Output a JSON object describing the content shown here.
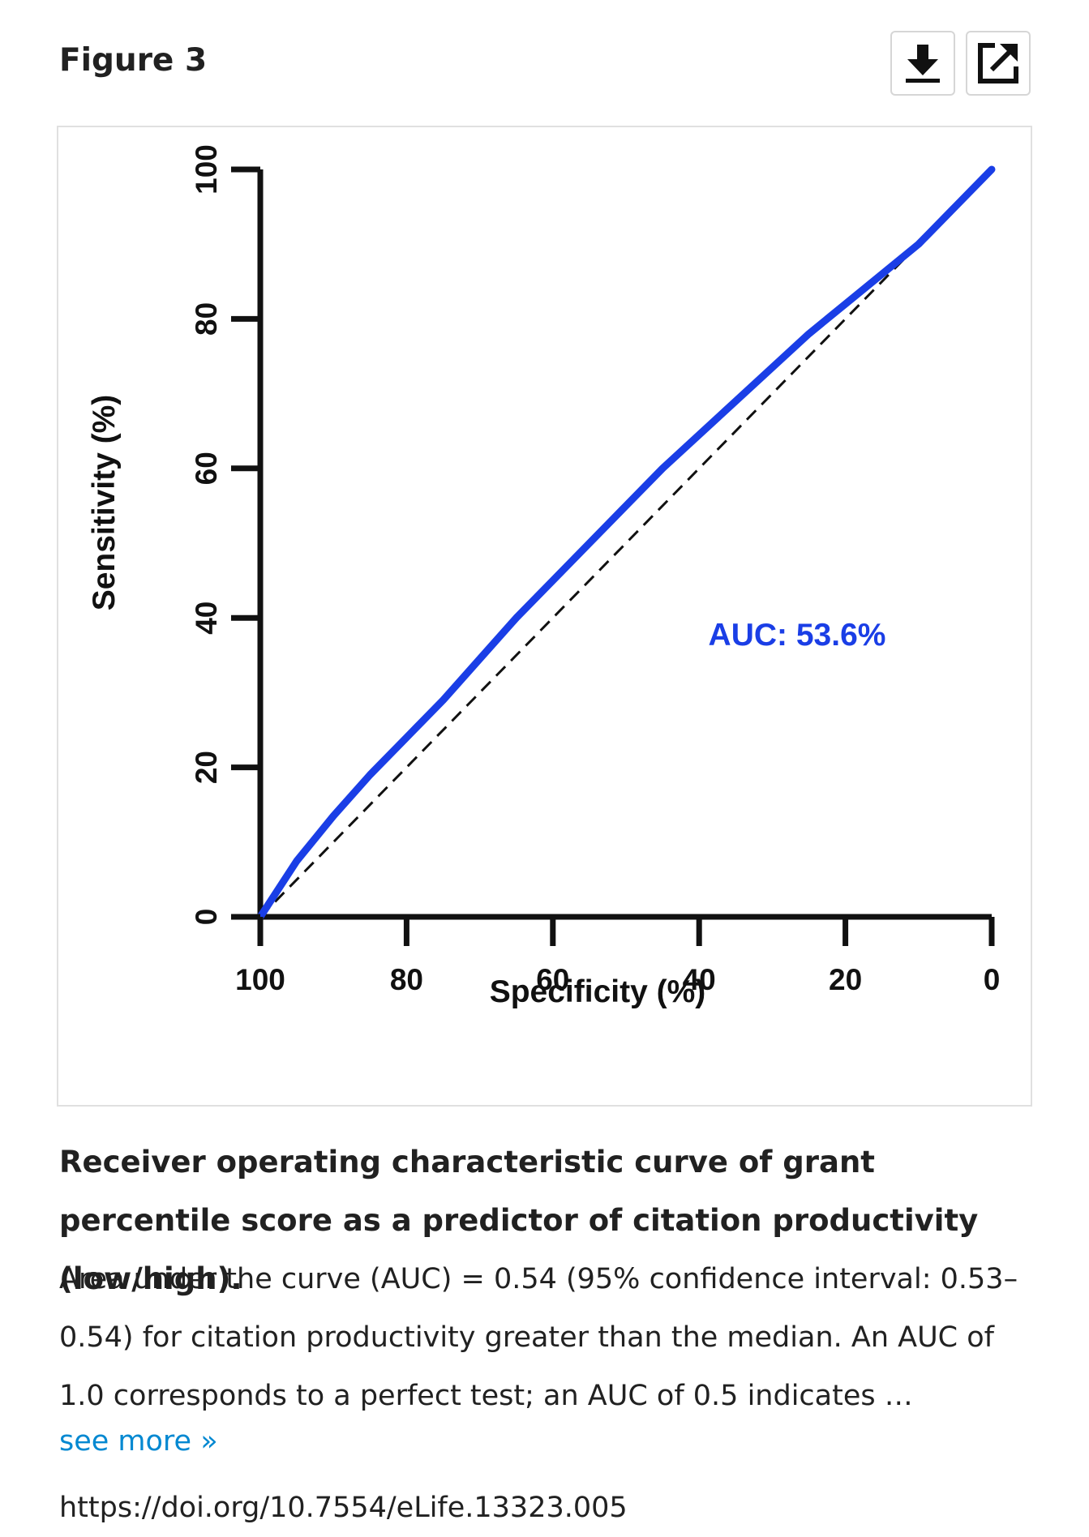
{
  "figure": {
    "label": "Figure 3",
    "download_icon": "download-icon",
    "open_icon": "open-external-icon"
  },
  "chart_data": {
    "type": "line",
    "xlabel": "Specificity (%)",
    "ylabel": "Sensitivity (%)",
    "xlim": [
      100,
      0
    ],
    "ylim": [
      0,
      100
    ],
    "xticks": [
      "100",
      "80",
      "60",
      "40",
      "20",
      "0"
    ],
    "yticks": [
      "0",
      "20",
      "40",
      "60",
      "80",
      "100"
    ],
    "annotation": "AUC: 53.6%",
    "curve_color": "#1a3ee6",
    "grid": false,
    "series": [
      {
        "x": [
          100,
          95,
          90,
          85,
          80,
          75,
          70,
          65,
          60,
          55,
          50,
          45,
          40,
          35,
          30,
          25,
          20,
          15,
          10,
          5,
          0
        ],
        "y": [
          0,
          7.5,
          13.5,
          19,
          24,
          29,
          34.5,
          40,
          45,
          50,
          55,
          60,
          64.5,
          69,
          73.5,
          78,
          82,
          86,
          90,
          95,
          100
        ]
      },
      {
        "x": [
          100,
          0
        ],
        "y": [
          0,
          100
        ],
        "style": "dashed"
      }
    ]
  },
  "caption": {
    "title": "Receiver operating characteristic curve of grant percentile score as a predictor of citation productivity (low/high).",
    "body": "Area under the curve (AUC) = 0.54 (95% confidence interval: 0.53–0.54) for citation productivity greater than the median. An AUC of 1.0 corresponds to a perfect test; an AUC of 0.5 indicates …",
    "see_more": "see more »",
    "doi": "https://doi.org/10.7554/eLife.13323.005"
  }
}
